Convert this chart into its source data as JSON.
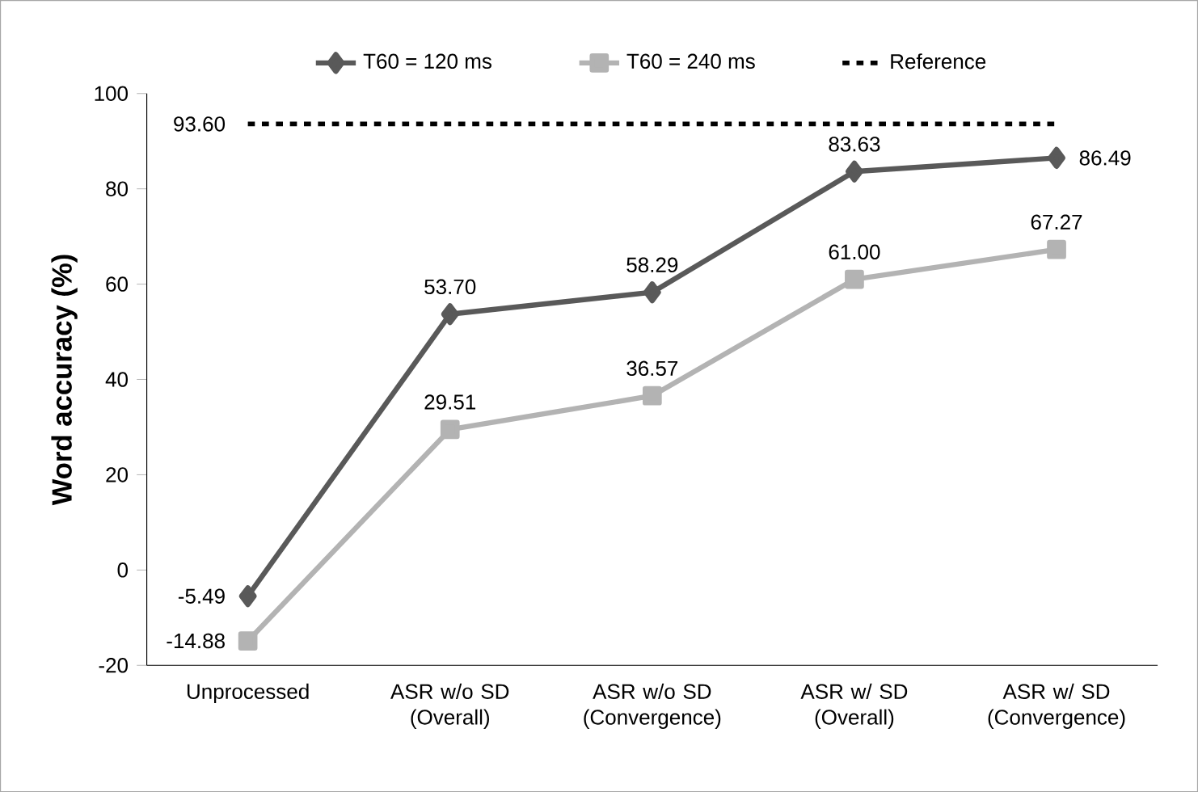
{
  "chart_data": {
    "type": "line",
    "ylabel": "Word accuracy (%)",
    "categories": [
      "Unprocessed",
      "ASR w/o SD (Overall)",
      "ASR w/o SD (Convergence)",
      "ASR w/ SD (Overall)",
      "ASR w/ SD (Convergence)"
    ],
    "series": [
      {
        "name": "T60 = 120 ms",
        "color": "#595959",
        "marker": "diamond",
        "line_style": "solid",
        "values": [
          -5.49,
          53.7,
          58.29,
          83.63,
          86.49
        ],
        "value_labels": [
          "-5.49",
          "53.70",
          "58.29",
          "83.63",
          "86.49"
        ]
      },
      {
        "name": "T60 = 240 ms",
        "color": "#b3b3b3",
        "marker": "square",
        "line_style": "solid",
        "values": [
          -14.88,
          29.51,
          36.57,
          61.0,
          67.27
        ],
        "value_labels": [
          "-14.88",
          "29.51",
          "36.57",
          "61.00",
          "67.27"
        ]
      },
      {
        "name": "Reference",
        "color": "#000000",
        "marker": "none",
        "line_style": "dashed",
        "values": [
          93.6,
          93.6,
          93.6,
          93.6,
          93.6
        ],
        "value_labels": [
          "93.60",
          null,
          null,
          null,
          null
        ]
      }
    ],
    "ylim": [
      -20,
      100
    ],
    "yticks": [
      -20,
      0,
      20,
      40,
      60,
      80,
      100
    ],
    "grid": false,
    "legend": "top"
  }
}
